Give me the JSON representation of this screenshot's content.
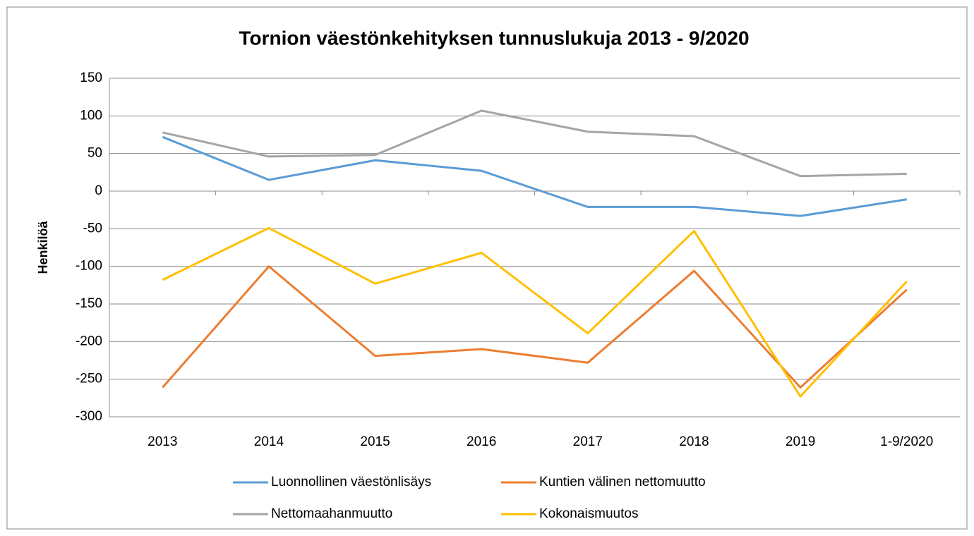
{
  "chart_data": {
    "type": "line",
    "title": "Tornion väestönkehityksen tunnuslukuja 2013 - 9/2020",
    "y_label": "Henkilöä",
    "categories": [
      "2013",
      "2014",
      "2015",
      "2016",
      "2017",
      "2018",
      "2019",
      "1-9/2020"
    ],
    "series": [
      {
        "name": "Luonnollinen väestönlisäys",
        "color": "#5b9bd5",
        "values": [
          72,
          15,
          41,
          27,
          -21,
          -21,
          -33,
          -11
        ]
      },
      {
        "name": "Kuntien välinen nettomuutto",
        "color": "#ed7d31",
        "values": [
          -261,
          -100,
          -219,
          -210,
          -228,
          -106,
          -261,
          -131
        ]
      },
      {
        "name": "Nettomaahanmuutto",
        "color": "#a5a5a5",
        "values": [
          78,
          46,
          48,
          107,
          79,
          73,
          20,
          23
        ]
      },
      {
        "name": "Kokonaismuutos",
        "color": "#ffc000",
        "values": [
          -118,
          -49,
          -123,
          -82,
          -189,
          -53,
          -273,
          -120
        ]
      }
    ],
    "ylim": [
      -300,
      150
    ],
    "yticks": [
      -300,
      -250,
      -200,
      -150,
      -100,
      -50,
      0,
      50,
      100,
      150
    ],
    "grid": true
  }
}
